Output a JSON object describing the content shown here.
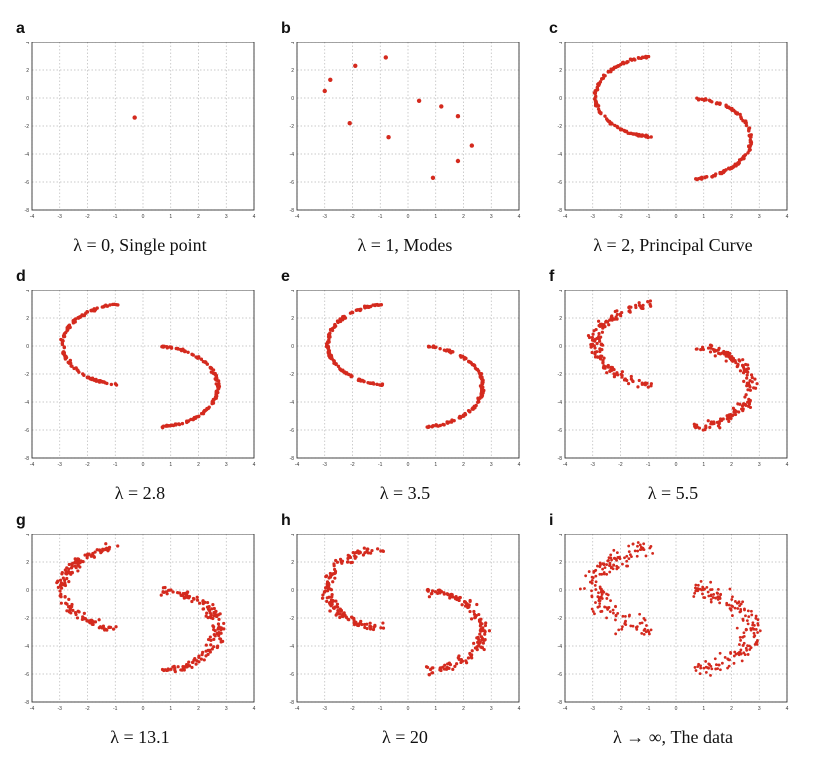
{
  "figure": {
    "point_color": "#d42a1e",
    "panels": [
      {
        "letter": "a",
        "caption": "λ = 0, Single point",
        "kind": "single"
      },
      {
        "letter": "b",
        "caption": "λ = 1, Modes",
        "kind": "modes"
      },
      {
        "letter": "c",
        "caption": "λ = 2, Principal Curve",
        "kind": "curve"
      },
      {
        "letter": "d",
        "caption": "λ = 2.8",
        "kind": "curve"
      },
      {
        "letter": "e",
        "caption": "λ = 3.5",
        "kind": "curve"
      },
      {
        "letter": "f",
        "caption": "λ = 5.5",
        "kind": "cloud"
      },
      {
        "letter": "g",
        "caption": "λ = 13.1",
        "kind": "cloud"
      },
      {
        "letter": "h",
        "caption": "λ = 20",
        "kind": "cloud"
      },
      {
        "letter": "i",
        "caption": "λ → ∞, The data",
        "kind": "data"
      }
    ]
  },
  "chart_data": {
    "type": "scatter",
    "xlim": [
      -4,
      4
    ],
    "ylim": [
      -8,
      4
    ],
    "x_ticks": [
      "-4",
      "-3",
      "-2",
      "-1",
      "0",
      "1",
      "2",
      "3",
      "4"
    ],
    "y_ticks": [
      "4",
      "2",
      "0",
      "-2",
      "-4",
      "-6",
      "-8"
    ],
    "grid": true,
    "single_point": {
      "x": -0.3,
      "y": -1.4
    },
    "modes": [
      {
        "x": -3.0,
        "y": 0.5
      },
      {
        "x": -2.8,
        "y": 1.3
      },
      {
        "x": -1.9,
        "y": 2.3
      },
      {
        "x": -0.8,
        "y": 2.9
      },
      {
        "x": -2.1,
        "y": -1.8
      },
      {
        "x": -0.7,
        "y": -2.8
      },
      {
        "x": 0.4,
        "y": -0.2
      },
      {
        "x": 1.2,
        "y": -0.6
      },
      {
        "x": 1.8,
        "y": -1.3
      },
      {
        "x": 2.3,
        "y": -3.4
      },
      {
        "x": 1.8,
        "y": -4.5
      },
      {
        "x": 0.9,
        "y": -5.7
      }
    ],
    "upper_arc": {
      "center": {
        "x": -0.6,
        "y": 0.1
      },
      "rx": 2.3,
      "ry": 2.9
    },
    "lower_arc": {
      "center": {
        "x": 0.4,
        "y": -2.9
      },
      "rx": 2.3,
      "ry": 2.9
    }
  }
}
